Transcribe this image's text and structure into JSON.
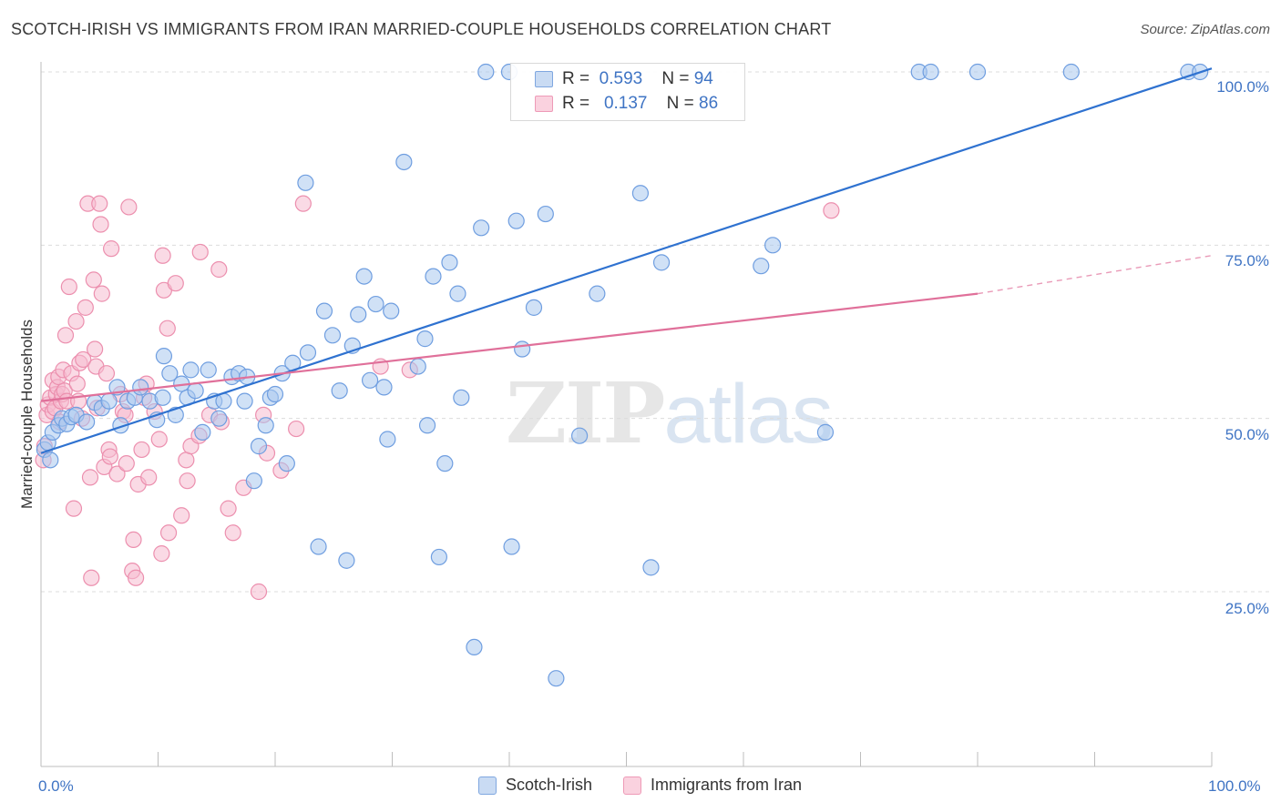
{
  "header": {
    "title": "SCOTCH-IRISH VS IMMIGRANTS FROM IRAN MARRIED-COUPLE HOUSEHOLDS CORRELATION CHART",
    "source": "Source: ZipAtlas.com"
  },
  "watermark": {
    "zip": "ZIP",
    "atlas": "atlas"
  },
  "legend": {
    "rows": [
      {
        "r_label": "R =",
        "r_value": "0.593",
        "n_label": "N =",
        "n_value": "94"
      },
      {
        "r_label": "R =",
        "r_value": "0.137",
        "n_label": "N =",
        "n_value": "86"
      }
    ]
  },
  "colors": {
    "blue_fill": "#aac8ee",
    "blue_stroke": "#6f9ee0",
    "blue_line": "#2f72d0",
    "pink_fill": "#f6bcd0",
    "pink_stroke": "#ec8fae",
    "pink_line": "#e0709a",
    "grid": "#dcdcdc",
    "tick_text": "#3f74c4"
  },
  "chart_data": {
    "type": "scatter",
    "title": "SCOTCH-IRISH VS IMMIGRANTS FROM IRAN MARRIED-COUPLE HOUSEHOLDS CORRELATION CHART",
    "xlabel": "",
    "ylabel": "Married-couple Households",
    "xlim": [
      0,
      100
    ],
    "ylim": [
      0,
      105
    ],
    "x_tick_labels": [
      "0.0%",
      "100.0%"
    ],
    "y_ticks": [
      25,
      50,
      75,
      100
    ],
    "y_tick_labels": [
      "25.0%",
      "50.0%",
      "75.0%",
      "100.0%"
    ],
    "grid": true,
    "legend_position": "top-center",
    "series": [
      {
        "name": "Scotch-Irish",
        "color": "#aac8ee",
        "R": 0.593,
        "N": 94,
        "trend": {
          "x0": 0,
          "y0": 45.0,
          "x1": 100,
          "y1": 100.5
        },
        "points": [
          [
            0.3,
            45.5
          ],
          [
            0.6,
            46.5
          ],
          [
            0.8,
            44.0
          ],
          [
            1.0,
            48.0
          ],
          [
            1.5,
            49.0
          ],
          [
            1.8,
            50.0
          ],
          [
            2.2,
            49.2
          ],
          [
            2.6,
            50.2
          ],
          [
            3.0,
            50.5
          ],
          [
            3.9,
            49.5
          ],
          [
            4.6,
            52.3
          ],
          [
            5.2,
            51.5
          ],
          [
            5.8,
            52.5
          ],
          [
            6.5,
            54.5
          ],
          [
            6.8,
            49.0
          ],
          [
            7.4,
            52.5
          ],
          [
            8.0,
            53.0
          ],
          [
            8.5,
            54.5
          ],
          [
            9.3,
            52.5
          ],
          [
            9.9,
            49.8
          ],
          [
            10.4,
            53.0
          ],
          [
            10.5,
            59.0
          ],
          [
            11.0,
            56.5
          ],
          [
            11.5,
            50.5
          ],
          [
            12.0,
            55.0
          ],
          [
            12.5,
            53.0
          ],
          [
            12.8,
            57.0
          ],
          [
            13.2,
            54.0
          ],
          [
            13.8,
            48.0
          ],
          [
            14.3,
            57.0
          ],
          [
            14.8,
            52.5
          ],
          [
            15.2,
            50.0
          ],
          [
            15.6,
            52.5
          ],
          [
            16.3,
            56.0
          ],
          [
            16.9,
            56.5
          ],
          [
            17.4,
            52.5
          ],
          [
            17.6,
            56.0
          ],
          [
            18.2,
            41.0
          ],
          [
            18.6,
            46.0
          ],
          [
            19.2,
            49.0
          ],
          [
            19.6,
            53.0
          ],
          [
            20.0,
            53.5
          ],
          [
            20.6,
            56.5
          ],
          [
            21.0,
            43.5
          ],
          [
            21.5,
            58.0
          ],
          [
            22.6,
            84.0
          ],
          [
            22.8,
            59.5
          ],
          [
            23.7,
            31.5
          ],
          [
            24.2,
            65.5
          ],
          [
            24.9,
            62.0
          ],
          [
            25.5,
            54.0
          ],
          [
            26.1,
            29.5
          ],
          [
            26.6,
            60.5
          ],
          [
            27.1,
            65.0
          ],
          [
            27.6,
            70.5
          ],
          [
            28.1,
            55.5
          ],
          [
            28.6,
            66.5
          ],
          [
            29.3,
            54.5
          ],
          [
            29.6,
            47.0
          ],
          [
            29.9,
            65.5
          ],
          [
            31.0,
            87.0
          ],
          [
            32.2,
            57.5
          ],
          [
            32.8,
            61.5
          ],
          [
            33.0,
            49.0
          ],
          [
            33.5,
            70.5
          ],
          [
            34.0,
            30.0
          ],
          [
            34.5,
            43.5
          ],
          [
            34.9,
            72.5
          ],
          [
            35.6,
            68.0
          ],
          [
            35.9,
            53.0
          ],
          [
            37.0,
            17.0
          ],
          [
            37.6,
            77.5
          ],
          [
            40.2,
            31.5
          ],
          [
            40.6,
            78.5
          ],
          [
            41.1,
            60.0
          ],
          [
            42.1,
            66.0
          ],
          [
            43.1,
            79.5
          ],
          [
            44.0,
            12.5
          ],
          [
            46.0,
            47.5
          ],
          [
            47.5,
            68.0
          ],
          [
            51.2,
            82.5
          ],
          [
            52.1,
            28.5
          ],
          [
            53.0,
            72.5
          ],
          [
            61.5,
            72.0
          ],
          [
            62.5,
            75.0
          ],
          [
            67.0,
            48.0
          ],
          [
            75.0,
            100.0
          ],
          [
            76.0,
            100.0
          ],
          [
            80.0,
            100.0
          ],
          [
            88.0,
            100.0
          ],
          [
            98.0,
            100.0
          ],
          [
            99.0,
            100.0
          ],
          [
            38.0,
            100.0
          ],
          [
            40.0,
            100.0
          ]
        ]
      },
      {
        "name": "Immigrants from Iran",
        "color": "#f6bcd0",
        "R": 0.137,
        "N": 86,
        "trend": {
          "x0": 0,
          "y0": 52.5,
          "x1": 80,
          "y1": 68.0,
          "dashed_to_x": 100,
          "dashed_to_y": 73.5
        },
        "points": [
          [
            0.2,
            44.0
          ],
          [
            0.3,
            46.0
          ],
          [
            0.5,
            50.5
          ],
          [
            0.6,
            52.0
          ],
          [
            0.8,
            53.0
          ],
          [
            1.0,
            55.5
          ],
          [
            1.0,
            51.0
          ],
          [
            1.2,
            51.5
          ],
          [
            1.3,
            53.5
          ],
          [
            1.4,
            54.5
          ],
          [
            1.5,
            56.0
          ],
          [
            1.6,
            49.5
          ],
          [
            1.7,
            52.5
          ],
          [
            1.8,
            53.5
          ],
          [
            1.9,
            57.0
          ],
          [
            2.0,
            54.0
          ],
          [
            2.1,
            62.0
          ],
          [
            2.2,
            52.5
          ],
          [
            2.4,
            69.0
          ],
          [
            2.6,
            56.5
          ],
          [
            2.8,
            37.0
          ],
          [
            3.0,
            64.0
          ],
          [
            3.1,
            55.0
          ],
          [
            3.2,
            52.5
          ],
          [
            3.3,
            58.0
          ],
          [
            3.5,
            50.0
          ],
          [
            3.6,
            58.5
          ],
          [
            3.8,
            66.0
          ],
          [
            4.0,
            81.0
          ],
          [
            4.2,
            41.5
          ],
          [
            4.3,
            27.0
          ],
          [
            4.5,
            70.0
          ],
          [
            4.6,
            60.0
          ],
          [
            4.7,
            57.5
          ],
          [
            4.8,
            51.5
          ],
          [
            5.0,
            81.0
          ],
          [
            5.1,
            78.0
          ],
          [
            5.2,
            68.0
          ],
          [
            5.4,
            43.0
          ],
          [
            5.6,
            56.5
          ],
          [
            5.8,
            45.5
          ],
          [
            5.9,
            44.5
          ],
          [
            6.0,
            74.5
          ],
          [
            6.5,
            42.0
          ],
          [
            6.8,
            53.5
          ],
          [
            7.0,
            51.0
          ],
          [
            7.2,
            50.5
          ],
          [
            7.3,
            43.5
          ],
          [
            7.5,
            80.5
          ],
          [
            7.8,
            28.0
          ],
          [
            7.9,
            32.5
          ],
          [
            8.1,
            27.0
          ],
          [
            8.3,
            40.5
          ],
          [
            8.6,
            45.5
          ],
          [
            8.8,
            53.0
          ],
          [
            9.0,
            55.0
          ],
          [
            9.2,
            41.5
          ],
          [
            9.7,
            51.0
          ],
          [
            10.1,
            47.0
          ],
          [
            10.3,
            30.5
          ],
          [
            10.4,
            73.5
          ],
          [
            10.5,
            68.5
          ],
          [
            10.8,
            63.0
          ],
          [
            10.9,
            33.5
          ],
          [
            11.5,
            69.5
          ],
          [
            12.0,
            36.0
          ],
          [
            12.4,
            44.0
          ],
          [
            12.5,
            41.0
          ],
          [
            12.8,
            46.0
          ],
          [
            13.5,
            47.5
          ],
          [
            13.6,
            74.0
          ],
          [
            14.4,
            50.5
          ],
          [
            15.2,
            71.5
          ],
          [
            15.4,
            49.5
          ],
          [
            16.0,
            37.0
          ],
          [
            16.4,
            33.5
          ],
          [
            17.3,
            40.0
          ],
          [
            18.6,
            25.0
          ],
          [
            19.0,
            50.5
          ],
          [
            19.3,
            45.0
          ],
          [
            20.5,
            42.5
          ],
          [
            21.8,
            48.5
          ],
          [
            22.4,
            81.0
          ],
          [
            29.0,
            57.5
          ],
          [
            31.5,
            57.0
          ],
          [
            67.5,
            80.0
          ]
        ]
      }
    ]
  },
  "bottom_legend": {
    "series_1": "Scotch-Irish",
    "series_2": "Immigrants from Iran"
  }
}
